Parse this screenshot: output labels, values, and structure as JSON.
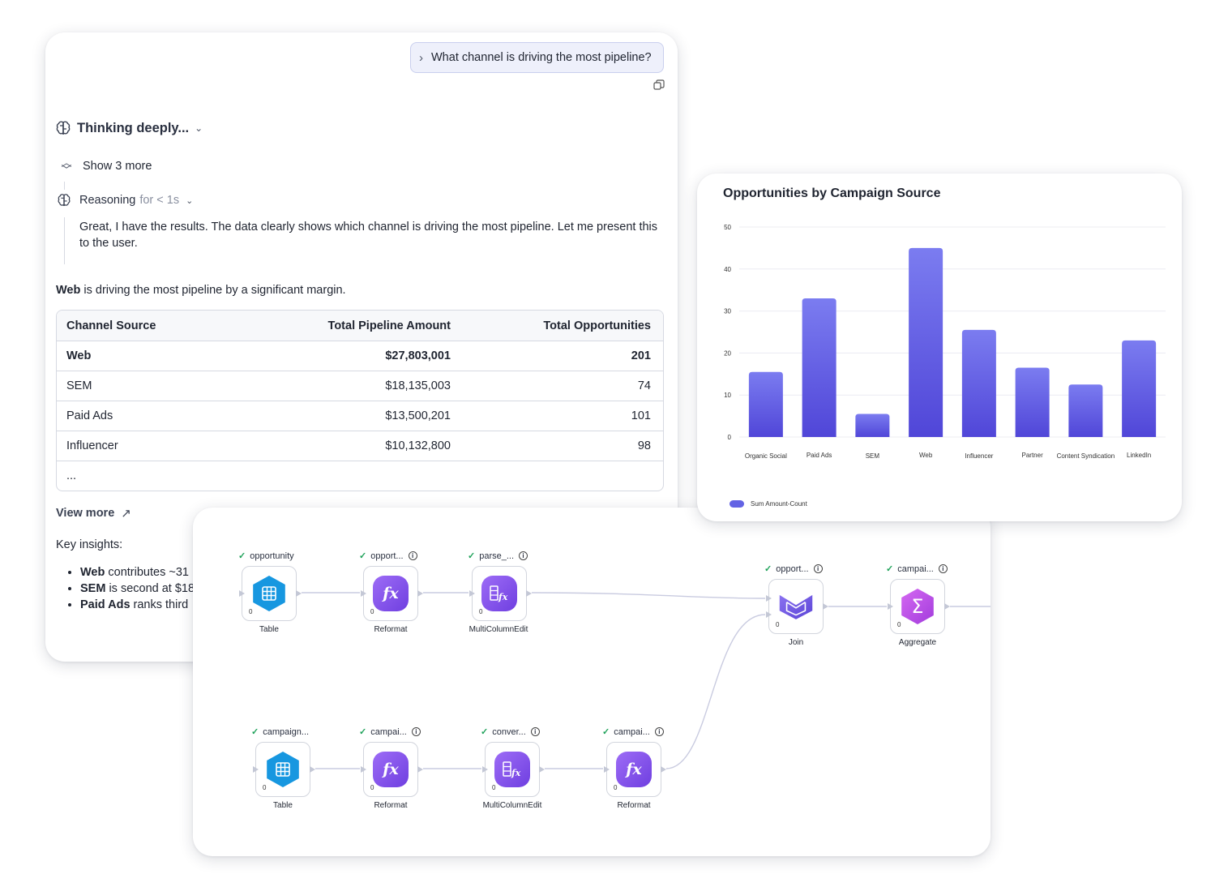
{
  "chat": {
    "user_question": "What channel is driving the most pipeline?",
    "thinking_label": "Thinking deeply...",
    "show_more_label": "Show 3 more",
    "reasoning_label": "Reasoning",
    "reasoning_duration": "for < 1s",
    "reasoning_text": "Great, I have the results. The data clearly shows which channel is driving the most pipeline. Let me present this to the user.",
    "summary_bold": "Web",
    "summary_rest": " is driving the most pipeline by a significant margin.",
    "table": {
      "headers": [
        "Channel Source",
        "Total Pipeline Amount",
        "Total Opportunities"
      ],
      "rows": [
        [
          "Web",
          "$27,803,001",
          "201"
        ],
        [
          "SEM",
          "$18,135,003",
          "74"
        ],
        [
          "Paid Ads",
          "$13,500,201",
          "101"
        ],
        [
          "Influencer",
          "$10,132,800",
          "98"
        ]
      ],
      "ellipsis": "..."
    },
    "view_more_label": "View more",
    "insights_title": "Key insights:",
    "insights": [
      {
        "bold": "Web",
        "text": " contributes ~31"
      },
      {
        "bold": "SEM",
        "text": " is second at $18"
      },
      {
        "bold": "Paid Ads",
        "text": " ranks third"
      }
    ]
  },
  "chart_data": {
    "type": "bar",
    "title": "Opportunities by Campaign Source",
    "categories": [
      "Organic Social",
      "Paid Ads",
      "SEM",
      "Web",
      "Influencer",
      "Partner",
      "Content Syndication",
      "LinkedIn"
    ],
    "series": [
      {
        "name": "Sum Amount-Count",
        "values": [
          15.5,
          33,
          5.5,
          45,
          25.5,
          16.5,
          12.5,
          23
        ],
        "color": "#6363e4"
      }
    ],
    "ylim": [
      0,
      50
    ],
    "yticks": [
      0,
      10,
      20,
      30,
      40,
      50
    ],
    "grid": true,
    "legend_position": "bottom-left"
  },
  "pipeline": {
    "nodes": [
      {
        "id": "n1",
        "top_label": "opportunity",
        "type_label": "Table",
        "count": "0",
        "icon": "table-icon",
        "info": false
      },
      {
        "id": "n2",
        "top_label": "opport...",
        "type_label": "Reformat",
        "count": "0",
        "icon": "fx-icon",
        "info": true
      },
      {
        "id": "n3",
        "top_label": "parse_...",
        "type_label": "MultiColumnEdit",
        "count": "0",
        "icon": "multicolumn-icon",
        "info": true
      },
      {
        "id": "n4",
        "top_label": "opport...",
        "type_label": "Join",
        "count": "0",
        "icon": "join-icon",
        "info": true
      },
      {
        "id": "n5",
        "top_label": "campai...",
        "type_label": "Aggregate",
        "count": "0",
        "icon": "sigma-icon",
        "info": true
      },
      {
        "id": "n6",
        "top_label": "campaign...",
        "type_label": "Table",
        "count": "0",
        "icon": "table-icon",
        "info": false
      },
      {
        "id": "n7",
        "top_label": "campai...",
        "type_label": "Reformat",
        "count": "0",
        "icon": "fx-icon",
        "info": true
      },
      {
        "id": "n8",
        "top_label": "conver...",
        "type_label": "MultiColumnEdit",
        "count": "0",
        "icon": "multicolumn-icon",
        "info": true
      },
      {
        "id": "n9",
        "top_label": "campai...",
        "type_label": "Reformat",
        "count": "0",
        "icon": "fx-icon",
        "info": true
      }
    ]
  }
}
